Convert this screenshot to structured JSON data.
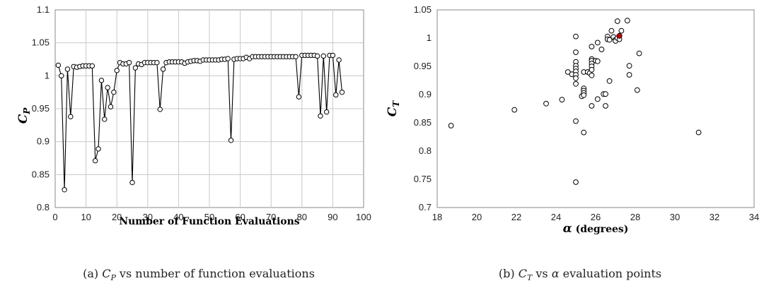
{
  "chart_data": [
    {
      "type": "line",
      "title": "",
      "xlabel": "Number of Function Evaluations",
      "ylabel_main": "C",
      "ylabel_sub": "P",
      "xlim": [
        0,
        100
      ],
      "ylim": [
        0.8,
        1.1
      ],
      "xticks": [
        "0",
        "10",
        "20",
        "30",
        "40",
        "50",
        "60",
        "70",
        "80",
        "90",
        "100"
      ],
      "yticks": [
        "0.8",
        "0.85",
        "0.9",
        "0.95",
        "1",
        "1.05",
        "1.1"
      ],
      "grid": true,
      "markers": "open circle",
      "caption_prefix": "(a) ",
      "caption_sym_main": "C",
      "caption_sym_sub": "P",
      "caption_text": " vs number of function evaluations",
      "series": [
        {
          "x": [
            1,
            2,
            3,
            4,
            5,
            6,
            7,
            8,
            9,
            10,
            11,
            12,
            13,
            14,
            15,
            16,
            17,
            18,
            19,
            20,
            21,
            22,
            23,
            24,
            25,
            26,
            27,
            28,
            29,
            30,
            31,
            32,
            33,
            34,
            35,
            36,
            37,
            38,
            39,
            40,
            41,
            42,
            43,
            44,
            45,
            46,
            47,
            48,
            49,
            50,
            51,
            52,
            53,
            54,
            55,
            56,
            57,
            58,
            59,
            60,
            61,
            62,
            63,
            64,
            65,
            66,
            67,
            68,
            69,
            70,
            71,
            72,
            73,
            74,
            75,
            76,
            77,
            78,
            79,
            80,
            81,
            82,
            83,
            84,
            85,
            86,
            87,
            88,
            89,
            90,
            91,
            92,
            93
          ],
          "y": [
            1.016,
            1.0,
            0.827,
            1.01,
            0.938,
            1.014,
            1.013,
            1.014,
            1.015,
            1.015,
            1.015,
            1.015,
            0.871,
            0.889,
            0.993,
            0.934,
            0.982,
            0.953,
            0.975,
            1.008,
            1.02,
            1.018,
            1.018,
            1.02,
            0.838,
            1.012,
            1.018,
            1.017,
            1.02,
            1.02,
            1.02,
            1.02,
            1.02,
            0.949,
            1.01,
            1.02,
            1.021,
            1.021,
            1.021,
            1.021,
            1.021,
            1.019,
            1.021,
            1.022,
            1.023,
            1.023,
            1.022,
            1.024,
            1.024,
            1.024,
            1.024,
            1.024,
            1.024,
            1.025,
            1.025,
            1.026,
            0.902,
            1.025,
            1.026,
            1.026,
            1.026,
            1.028,
            1.026,
            1.029,
            1.029,
            1.029,
            1.029,
            1.029,
            1.029,
            1.029,
            1.029,
            1.029,
            1.029,
            1.029,
            1.029,
            1.029,
            1.029,
            1.029,
            0.968,
            1.031,
            1.031,
            1.031,
            1.031,
            1.031,
            1.03,
            0.939,
            1.03,
            0.945,
            1.031,
            1.031,
            0.971,
            1.024,
            0.975
          ]
        }
      ]
    },
    {
      "type": "scatter",
      "title": "",
      "xlabel_sym": "α",
      "xlabel_text": " (degrees)",
      "ylabel_main": "C",
      "ylabel_sub": "T",
      "xlim": [
        18,
        34
      ],
      "ylim": [
        0.7,
        1.05
      ],
      "xticks": [
        "18",
        "20",
        "22",
        "24",
        "26",
        "28",
        "30",
        "32",
        "34"
      ],
      "yticks": [
        "0.7",
        "0.75",
        "0.8",
        "0.85",
        "0.9",
        "0.95",
        "1",
        "1.05"
      ],
      "grid": false,
      "markers": "open circle",
      "highlight_color": "#c00000",
      "caption_prefix": "(b) ",
      "caption_sym_main": "C",
      "caption_sym_sub": "T",
      "caption_mid": " vs ",
      "caption_sym2": "α",
      "caption_text": " evaluation points",
      "points": [
        [
          18.7,
          0.845
        ],
        [
          21.9,
          0.873
        ],
        [
          23.5,
          0.884
        ],
        [
          24.3,
          0.891
        ],
        [
          24.6,
          0.94
        ],
        [
          24.8,
          0.936
        ],
        [
          25.0,
          1.003
        ],
        [
          25.0,
          0.975
        ],
        [
          25.0,
          0.958
        ],
        [
          25.0,
          0.951
        ],
        [
          25.0,
          0.946
        ],
        [
          25.0,
          0.941
        ],
        [
          25.0,
          0.935
        ],
        [
          25.0,
          0.929
        ],
        [
          25.0,
          0.919
        ],
        [
          25.0,
          0.853
        ],
        [
          25.0,
          0.745
        ],
        [
          25.3,
          0.897
        ],
        [
          25.4,
          0.94
        ],
        [
          25.4,
          0.911
        ],
        [
          25.4,
          0.907
        ],
        [
          25.4,
          0.903
        ],
        [
          25.4,
          0.899
        ],
        [
          25.4,
          0.833
        ],
        [
          25.6,
          0.94
        ],
        [
          25.7,
          0.938
        ],
        [
          25.8,
          0.985
        ],
        [
          25.8,
          0.963
        ],
        [
          25.8,
          0.96
        ],
        [
          25.8,
          0.955
        ],
        [
          25.8,
          0.95
        ],
        [
          25.8,
          0.944
        ],
        [
          25.8,
          0.934
        ],
        [
          25.8,
          0.88
        ],
        [
          26.0,
          0.96
        ],
        [
          26.1,
          0.992
        ],
        [
          26.1,
          0.959
        ],
        [
          26.1,
          0.892
        ],
        [
          26.3,
          0.98
        ],
        [
          26.4,
          0.901
        ],
        [
          26.5,
          0.901
        ],
        [
          26.5,
          0.88
        ],
        [
          26.6,
          1.003
        ],
        [
          26.6,
          0.998
        ],
        [
          26.7,
          0.997
        ],
        [
          26.7,
          0.924
        ],
        [
          26.8,
          1.013
        ],
        [
          26.9,
          1.002
        ],
        [
          27.0,
          0.997
        ],
        [
          27.0,
          0.995
        ],
        [
          27.1,
          1.03
        ],
        [
          27.1,
          1.0
        ],
        [
          27.2,
          0.998
        ],
        [
          27.3,
          1.013
        ],
        [
          27.6,
          1.031
        ],
        [
          27.7,
          0.951
        ],
        [
          27.7,
          0.935
        ],
        [
          28.1,
          0.908
        ],
        [
          28.2,
          0.973
        ],
        [
          31.2,
          0.833
        ]
      ],
      "highlight_points": [
        [
          27.2,
          1.004
        ]
      ]
    }
  ]
}
